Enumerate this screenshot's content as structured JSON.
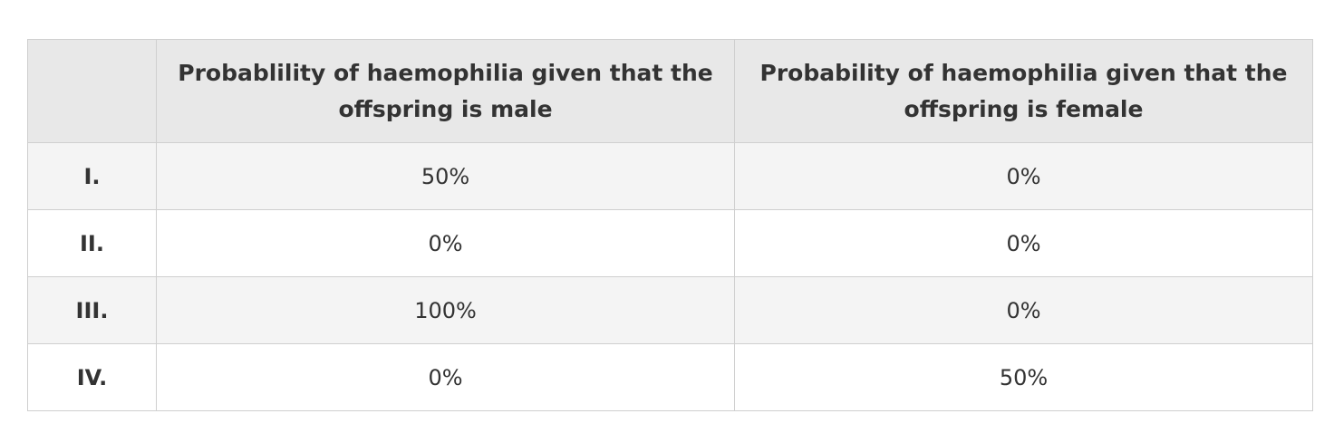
{
  "table": {
    "header": [
      "Probablility of  haemophilia given that the offspring is male",
      "Probability of haemophilia given that the offspring is female"
    ],
    "rows": [
      [
        "I.",
        "50%",
        "0%"
      ],
      [
        "II.",
        "0%",
        "0%"
      ],
      [
        "III.",
        "100%",
        "0%"
      ],
      [
        "IV.",
        "0%",
        "50%"
      ]
    ]
  }
}
